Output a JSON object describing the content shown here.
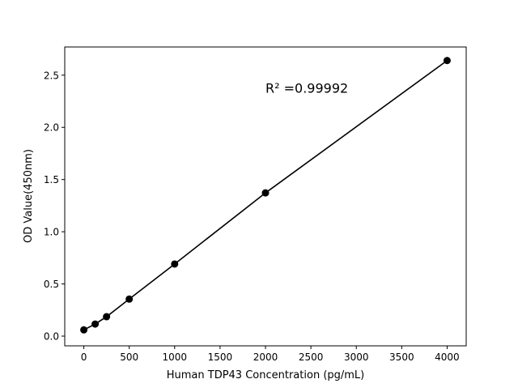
{
  "chart_data": {
    "type": "scatter",
    "title": "",
    "xlabel": "Human TDP43 Concentration (pg/mL)",
    "ylabel": "OD Value(450nm)",
    "xlim": [
      -210,
      4210
    ],
    "ylim": [
      -0.093,
      2.77
    ],
    "xticks": [
      0,
      500,
      1000,
      1500,
      2000,
      2500,
      3000,
      3500,
      4000
    ],
    "yticks": [
      0.0,
      0.5,
      1.0,
      1.5,
      2.0,
      2.5
    ],
    "xtick_labels": [
      "0",
      "500",
      "1000",
      "1500",
      "2000",
      "2500",
      "3000",
      "3500",
      "4000"
    ],
    "ytick_labels": [
      "0.0",
      "0.5",
      "1.0",
      "1.5",
      "2.0",
      "2.5"
    ],
    "grid": false,
    "series": [
      {
        "x": [
          0,
          125,
          250,
          500,
          1000,
          2000,
          4000
        ],
        "y": [
          0.06,
          0.116,
          0.186,
          0.355,
          0.691,
          1.372,
          2.64
        ],
        "marker": "circle",
        "line": true,
        "color": "#000000"
      }
    ],
    "annotations": [
      {
        "text": "R² =0.99992",
        "x": 2000,
        "y": 2.38
      }
    ]
  }
}
